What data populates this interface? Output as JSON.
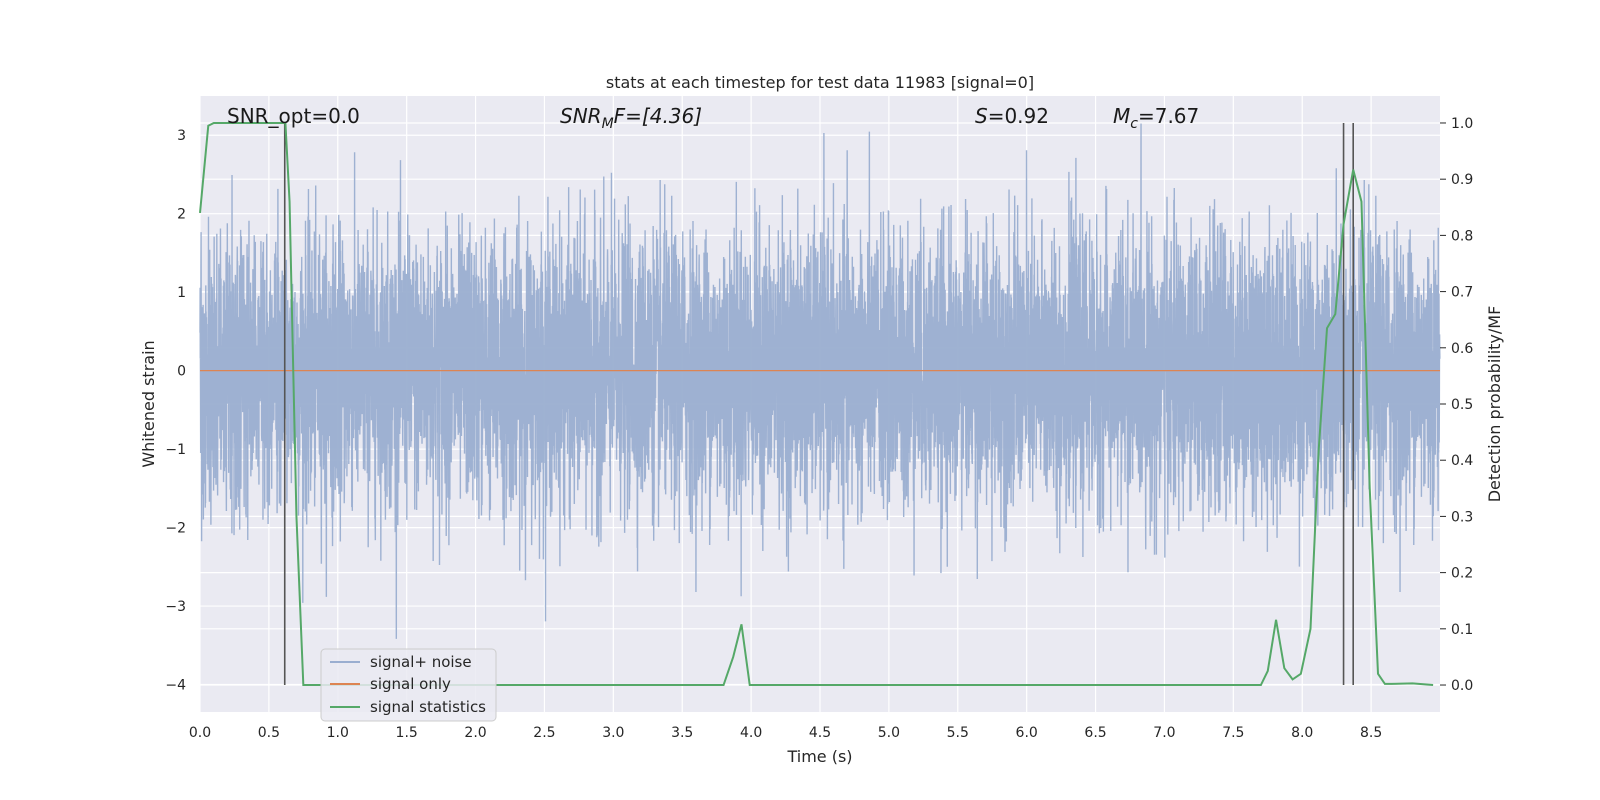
{
  "chart_data": {
    "type": "line",
    "title": "stats at each timestep for test data 11983 [signal=0]",
    "xlabel": "Time (s)",
    "ylabel": "Whitened strain",
    "y2label": "Detection probability/MF",
    "xlim": [
      0.0,
      9.0
    ],
    "ylim": [
      -4.35,
      3.5
    ],
    "y2lim": [
      -0.048,
      1.048
    ],
    "xticks": [
      "0.0",
      "0.5",
      "1.0",
      "1.5",
      "2.0",
      "2.5",
      "3.0",
      "3.5",
      "4.0",
      "4.5",
      "5.0",
      "5.5",
      "6.0",
      "6.5",
      "7.0",
      "7.5",
      "8.0",
      "8.5"
    ],
    "xtick_values": [
      0.0,
      0.5,
      1.0,
      1.5,
      2.0,
      2.5,
      3.0,
      3.5,
      4.0,
      4.5,
      5.0,
      5.5,
      6.0,
      6.5,
      7.0,
      7.5,
      8.0,
      8.5
    ],
    "yticks": [
      "3",
      "2",
      "1",
      "0",
      "−1",
      "−2",
      "−3",
      "−4"
    ],
    "ytick_values": [
      3,
      2,
      1,
      0,
      -1,
      -2,
      -3,
      -4
    ],
    "y2ticks": [
      "1.0",
      "0.9",
      "0.8",
      "0.7",
      "0.6",
      "0.5",
      "0.4",
      "0.3",
      "0.2",
      "0.1",
      "0.0"
    ],
    "y2tick_values": [
      1.0,
      0.9,
      0.8,
      0.7,
      0.6,
      0.5,
      0.4,
      0.3,
      0.2,
      0.1,
      0.0
    ],
    "grid": true,
    "legend_position": "lower-left",
    "annotations": {
      "snr_opt": "SNR_opt=0.0",
      "snr_mf_prefix": "SNR",
      "snr_mf_sub": "M",
      "snr_mf_suffix": "F=[4.36]",
      "s_prefix": "S",
      "s_suffix": "=0.92",
      "mc_prefix": "M",
      "mc_sub": "c",
      "mc_suffix": "=7.67"
    },
    "series": [
      {
        "name": "signal+ noise",
        "color": "#9aaed0",
        "kind": "noise",
        "sample_rate": 1024,
        "duration": 9.0,
        "amplitude_std": 0.85,
        "clip": [
          -4.0,
          3.15
        ]
      },
      {
        "name": "signal only",
        "color": "#dd8452",
        "kind": "flat",
        "y": 0.0
      },
      {
        "name": "signal statistics",
        "color": "#55a868",
        "axis": "right",
        "x": [
          0.0,
          0.06,
          0.1,
          0.2,
          0.3,
          0.4,
          0.5,
          0.55,
          0.6,
          0.62,
          0.65,
          0.7,
          0.75,
          3.8,
          3.87,
          3.93,
          3.99,
          7.7,
          7.75,
          7.81,
          7.87,
          7.93,
          7.99,
          8.06,
          8.12,
          8.18,
          8.24,
          8.3,
          8.37,
          8.43,
          8.49,
          8.55,
          8.6,
          8.65,
          8.8,
          8.95
        ],
        "y": [
          0.84,
          0.995,
          1.0,
          1.0,
          1.0,
          1.0,
          1.0,
          1.0,
          1.0,
          1.0,
          0.86,
          0.3,
          0.0,
          0.0,
          0.05,
          0.108,
          0.0,
          0.0,
          0.025,
          0.116,
          0.03,
          0.01,
          0.02,
          0.1,
          0.42,
          0.635,
          0.66,
          0.82,
          0.917,
          0.86,
          0.35,
          0.02,
          0.002,
          0.002,
          0.003,
          0.0
        ]
      }
    ],
    "vlines": [
      0.615,
      8.3,
      8.37
    ]
  }
}
